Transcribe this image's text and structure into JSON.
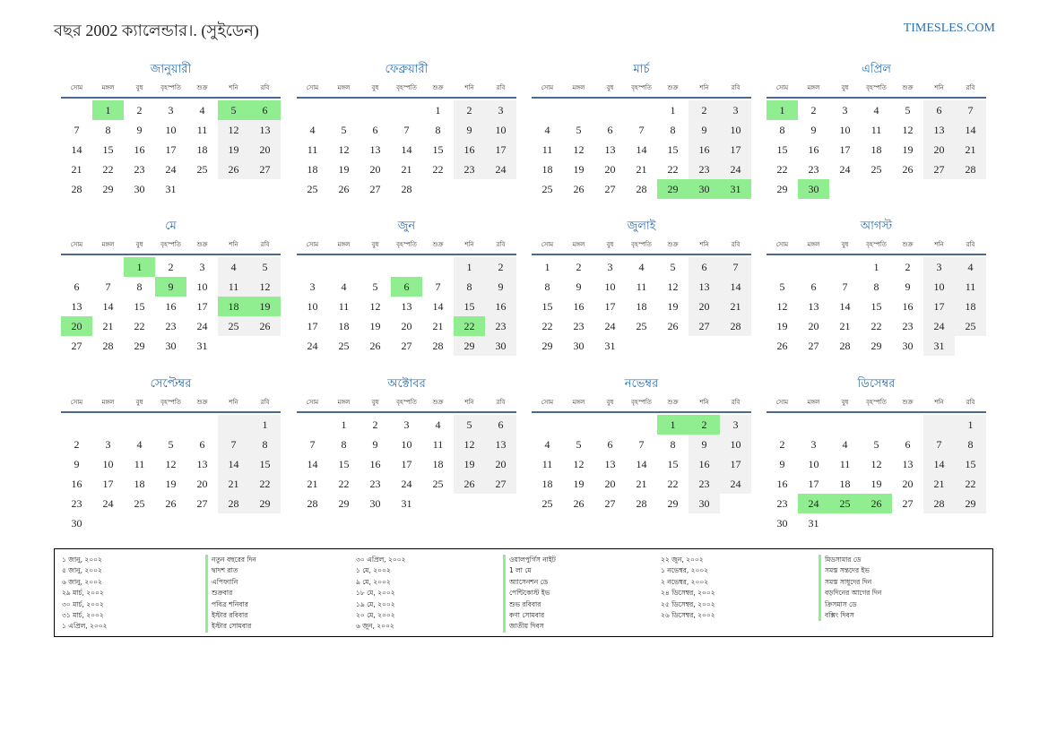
{
  "header": {
    "title": "বছর 2002 ক্যালেন্ডার।. (সুইডেন)",
    "site": "TIMESLES.COM"
  },
  "weekdays": [
    "সোম",
    "মঙ্গল",
    "বুধ",
    "বৃহস্পতি",
    "শুক্র",
    "শনি",
    "রবি"
  ],
  "colors": {
    "holiday": "#90ee90",
    "weekend": "#f1f1f1",
    "accent": "#2a6fb0",
    "rule": "#4a6a96"
  },
  "months": [
    {
      "name": "জানুয়ারী",
      "offset": 1,
      "days": 31,
      "holidays": [
        1,
        5,
        6
      ]
    },
    {
      "name": "ফেব্রুয়ারী",
      "offset": 4,
      "days": 28,
      "holidays": []
    },
    {
      "name": "মার্চ",
      "offset": 4,
      "days": 31,
      "holidays": [
        29,
        30,
        31
      ]
    },
    {
      "name": "এপ্রিল",
      "offset": 0,
      "days": 30,
      "holidays": [
        1,
        30
      ]
    },
    {
      "name": "মে",
      "offset": 2,
      "days": 31,
      "holidays": [
        1,
        9,
        18,
        19,
        20
      ]
    },
    {
      "name": "জুন",
      "offset": 5,
      "days": 30,
      "holidays": [
        6,
        22
      ]
    },
    {
      "name": "জুলাই",
      "offset": 0,
      "days": 31,
      "holidays": []
    },
    {
      "name": "আগস্ট",
      "offset": 3,
      "days": 31,
      "holidays": []
    },
    {
      "name": "সেপ্টেম্বর",
      "offset": 6,
      "days": 30,
      "holidays": []
    },
    {
      "name": "অক্টোবর",
      "offset": 1,
      "days": 31,
      "holidays": []
    },
    {
      "name": "নভেম্বর",
      "offset": 4,
      "days": 30,
      "holidays": [
        1,
        2
      ]
    },
    {
      "name": "ডিসেম্বর",
      "offset": 6,
      "days": 31,
      "holidays": [
        24,
        25,
        26
      ]
    }
  ],
  "legend": [
    {
      "date": "১ জানু, ২০০২",
      "name": "নতুন বছরের দিন"
    },
    {
      "date": "৫ জানু, ২০০২",
      "name": "দ্বাদশ রাত"
    },
    {
      "date": "৬ জানু, ২০০২",
      "name": "এপিফ্যানি"
    },
    {
      "date": "২৯ মার্চ, ২০০২",
      "name": "শুক্রবার"
    },
    {
      "date": "৩০ মার্চ, ২০০২",
      "name": "পবিত্র শনিবার"
    },
    {
      "date": "৩১ মার্চ, ২০০২",
      "name": "ইস্টার রবিবার"
    },
    {
      "date": "১ এপ্রিল, ২০০২",
      "name": "ইস্টার সোমবার"
    },
    {
      "date": "৩০ এপ্রিল, ২০০২",
      "name": "ওয়ালপুর্গিস নাইট"
    },
    {
      "date": "১ মে, ২০০২",
      "name": "1 লা মে"
    },
    {
      "date": "৯ মে, ২০০২",
      "name": "অ্যাসেনশন ডে"
    },
    {
      "date": "১৮ মে, ২০০২",
      "name": "পেন্টিকোস্ট ইভ"
    },
    {
      "date": "১৯ মে, ২০০২",
      "name": "শুভ রবিবার"
    },
    {
      "date": "২০ মে, ২০০২",
      "name": "কণা সোমবার"
    },
    {
      "date": "৬ জুন, ২০০২",
      "name": "জাতীয় দিবস"
    },
    {
      "date": "২২ জুন, ২০০২",
      "name": "মিডসামার ডে"
    },
    {
      "date": "১ নভেম্বর, ২০০২",
      "name": "সমস্ত সন্তদের ইভ"
    },
    {
      "date": "২ নভেম্বর, ২০০২",
      "name": "সমস্ত সাধুদের দিন"
    },
    {
      "date": "২৪ ডিসেম্বর, ২০০২",
      "name": "বড়দিনের আগের দিন"
    },
    {
      "date": "২৫ ডিসেম্বর, ২০০২",
      "name": "ক্রিসমাস ডে"
    },
    {
      "date": "২৬ ডিসেম্বর, ২০০২",
      "name": "বক্সিং দিবস"
    }
  ]
}
